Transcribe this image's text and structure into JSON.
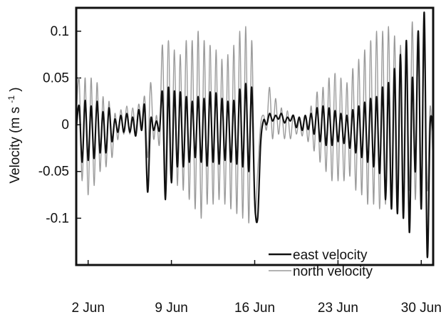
{
  "chart_data": {
    "type": "line",
    "title": "",
    "xlabel": "",
    "ylabel": "Velocity (m s",
    "ylabel_superscript": "-1",
    "ylabel_suffix": ")",
    "xlim": [
      "2000-06-01",
      "2000-07-01"
    ],
    "ylim": [
      -0.15,
      0.125
    ],
    "x_ticks": [
      {
        "date": "2000-06-02",
        "label": "2 Jun"
      },
      {
        "date": "2000-06-09",
        "label": "9 Jun"
      },
      {
        "date": "2000-06-16",
        "label": "16 Jun"
      },
      {
        "date": "2000-06-23",
        "label": "23 Jun"
      },
      {
        "date": "2000-06-30",
        "label": "30 Jun"
      }
    ],
    "y_ticks": [
      {
        "value": 0.1,
        "label": "0.1"
      },
      {
        "value": 0.05,
        "label": "0.05"
      },
      {
        "value": 0,
        "label": "0"
      },
      {
        "value": -0.05,
        "label": "-0.05"
      },
      {
        "value": -0.1,
        "label": "-0.1"
      }
    ],
    "grid": false,
    "legend_position": "bottom-right",
    "series": [
      {
        "name": "east velocity",
        "color": "#111111",
        "x": [
          "2000-06-01T00:00",
          "2000-06-01T06:00",
          "2000-06-01T12:00",
          "2000-06-01T18:00",
          "2000-06-02T00:00",
          "2000-06-02T06:00",
          "2000-06-02T12:00",
          "2000-06-02T18:00",
          "2000-06-03T00:00",
          "2000-06-03T06:00",
          "2000-06-03T12:00",
          "2000-06-03T18:00",
          "2000-06-04T00:00",
          "2000-06-04T06:00",
          "2000-06-04T12:00",
          "2000-06-04T18:00",
          "2000-06-05T00:00",
          "2000-06-05T06:00",
          "2000-06-05T12:00",
          "2000-06-05T18:00",
          "2000-06-06T00:00",
          "2000-06-06T06:00",
          "2000-06-06T12:00",
          "2000-06-06T18:00",
          "2000-06-07T00:00",
          "2000-06-07T06:00",
          "2000-06-07T12:00",
          "2000-06-07T18:00",
          "2000-06-08T00:00",
          "2000-06-08T06:00",
          "2000-06-08T12:00",
          "2000-06-08T18:00",
          "2000-06-09T00:00",
          "2000-06-09T06:00",
          "2000-06-09T12:00",
          "2000-06-09T18:00",
          "2000-06-10T00:00",
          "2000-06-10T06:00",
          "2000-06-10T12:00",
          "2000-06-10T18:00",
          "2000-06-11T00:00",
          "2000-06-11T06:00",
          "2000-06-11T12:00",
          "2000-06-11T18:00",
          "2000-06-12T00:00",
          "2000-06-12T06:00",
          "2000-06-12T12:00",
          "2000-06-12T18:00",
          "2000-06-13T00:00",
          "2000-06-13T06:00",
          "2000-06-13T12:00",
          "2000-06-13T18:00",
          "2000-06-14T00:00",
          "2000-06-14T06:00",
          "2000-06-14T12:00",
          "2000-06-14T18:00",
          "2000-06-15T00:00",
          "2000-06-15T06:00",
          "2000-06-15T12:00",
          "2000-06-15T18:00",
          "2000-06-16T00:00",
          "2000-06-16T06:00",
          "2000-06-16T12:00",
          "2000-06-16T18:00",
          "2000-06-17T00:00",
          "2000-06-17T06:00",
          "2000-06-17T12:00",
          "2000-06-17T18:00",
          "2000-06-18T00:00",
          "2000-06-18T06:00",
          "2000-06-18T12:00",
          "2000-06-18T18:00",
          "2000-06-19T00:00",
          "2000-06-19T06:00",
          "2000-06-19T12:00",
          "2000-06-19T18:00",
          "2000-06-20T00:00",
          "2000-06-20T06:00",
          "2000-06-20T12:00",
          "2000-06-20T18:00",
          "2000-06-21T00:00",
          "2000-06-21T06:00",
          "2000-06-21T12:00",
          "2000-06-21T18:00",
          "2000-06-22T00:00",
          "2000-06-22T06:00",
          "2000-06-22T12:00",
          "2000-06-22T18:00",
          "2000-06-23T00:00",
          "2000-06-23T06:00",
          "2000-06-23T12:00",
          "2000-06-23T18:00",
          "2000-06-24T00:00",
          "2000-06-24T06:00",
          "2000-06-24T12:00",
          "2000-06-24T18:00",
          "2000-06-25T00:00",
          "2000-06-25T06:00",
          "2000-06-25T12:00",
          "2000-06-25T18:00",
          "2000-06-26T00:00",
          "2000-06-26T06:00",
          "2000-06-26T12:00",
          "2000-06-26T18:00",
          "2000-06-27T00:00",
          "2000-06-27T06:00",
          "2000-06-27T12:00",
          "2000-06-27T18:00",
          "2000-06-28T00:00",
          "2000-06-28T06:00",
          "2000-06-28T12:00",
          "2000-06-28T18:00",
          "2000-06-29T00:00",
          "2000-06-29T06:00",
          "2000-06-29T12:00",
          "2000-06-29T18:00",
          "2000-06-30T00:00",
          "2000-06-30T06:00",
          "2000-06-30T12:00",
          "2000-06-30T18:00",
          "2000-07-01T00:00"
        ],
        "values": [
          -0.005,
          0.02,
          -0.04,
          0.026,
          -0.038,
          0.02,
          -0.036,
          0.025,
          -0.03,
          0.014,
          -0.03,
          0.018,
          -0.018,
          0.006,
          -0.008,
          0.01,
          -0.008,
          0.012,
          -0.008,
          0.008,
          -0.012,
          0.016,
          -0.006,
          0.02,
          -0.072,
          0.005,
          -0.006,
          0.004,
          -0.006,
          0.034,
          -0.08,
          0.04,
          -0.062,
          0.036,
          -0.045,
          0.035,
          -0.045,
          0.03,
          -0.04,
          0.025,
          -0.035,
          0.03,
          -0.04,
          0.028,
          -0.044,
          0.035,
          -0.04,
          0.034,
          -0.042,
          0.028,
          -0.038,
          0.025,
          -0.04,
          0.026,
          -0.042,
          0.038,
          -0.045,
          0.044,
          -0.05,
          0.04,
          -0.08,
          -0.1,
          -0.02,
          0.005,
          0.0,
          0.012,
          0.004,
          0.01,
          0.006,
          0.012,
          0.002,
          0.008,
          0.004,
          0.01,
          -0.003,
          0.008,
          -0.006,
          0.01,
          -0.005,
          0.012,
          -0.01,
          0.018,
          -0.018,
          0.02,
          -0.022,
          0.018,
          -0.022,
          0.015,
          -0.018,
          0.012,
          -0.02,
          0.01,
          -0.025,
          0.016,
          -0.03,
          0.02,
          -0.035,
          0.024,
          -0.04,
          0.028,
          -0.045,
          0.03,
          -0.052,
          0.04,
          -0.08,
          0.045,
          -0.09,
          0.06,
          -0.095,
          0.075,
          -0.1,
          0.09,
          -0.115,
          0.05,
          -0.05,
          0.1,
          -0.09,
          0.12,
          -0.14,
          0.002,
          -0.01
        ]
      },
      {
        "name": "north velocity",
        "color": "#9a9a9a",
        "x": [
          "2000-06-01T00:00",
          "2000-06-01T06:00",
          "2000-06-01T12:00",
          "2000-06-01T18:00",
          "2000-06-02T00:00",
          "2000-06-02T06:00",
          "2000-06-02T12:00",
          "2000-06-02T18:00",
          "2000-06-03T00:00",
          "2000-06-03T06:00",
          "2000-06-03T12:00",
          "2000-06-03T18:00",
          "2000-06-04T00:00",
          "2000-06-04T06:00",
          "2000-06-04T12:00",
          "2000-06-04T18:00",
          "2000-06-05T00:00",
          "2000-06-05T06:00",
          "2000-06-05T12:00",
          "2000-06-05T18:00",
          "2000-06-06T00:00",
          "2000-06-06T06:00",
          "2000-06-06T12:00",
          "2000-06-06T18:00",
          "2000-06-07T00:00",
          "2000-06-07T06:00",
          "2000-06-07T12:00",
          "2000-06-07T18:00",
          "2000-06-08T00:00",
          "2000-06-08T06:00",
          "2000-06-08T12:00",
          "2000-06-08T18:00",
          "2000-06-09T00:00",
          "2000-06-09T06:00",
          "2000-06-09T12:00",
          "2000-06-09T18:00",
          "2000-06-10T00:00",
          "2000-06-10T06:00",
          "2000-06-10T12:00",
          "2000-06-10T18:00",
          "2000-06-11T00:00",
          "2000-06-11T06:00",
          "2000-06-11T12:00",
          "2000-06-11T18:00",
          "2000-06-12T00:00",
          "2000-06-12T06:00",
          "2000-06-12T12:00",
          "2000-06-12T18:00",
          "2000-06-13T00:00",
          "2000-06-13T06:00",
          "2000-06-13T12:00",
          "2000-06-13T18:00",
          "2000-06-14T00:00",
          "2000-06-14T06:00",
          "2000-06-14T12:00",
          "2000-06-14T18:00",
          "2000-06-15T00:00",
          "2000-06-15T06:00",
          "2000-06-15T12:00",
          "2000-06-15T18:00",
          "2000-06-16T00:00",
          "2000-06-16T06:00",
          "2000-06-16T12:00",
          "2000-06-16T18:00",
          "2000-06-17T00:00",
          "2000-06-17T06:00",
          "2000-06-17T12:00",
          "2000-06-17T18:00",
          "2000-06-18T00:00",
          "2000-06-18T06:00",
          "2000-06-18T12:00",
          "2000-06-18T18:00",
          "2000-06-19T00:00",
          "2000-06-19T06:00",
          "2000-06-19T12:00",
          "2000-06-19T18:00",
          "2000-06-20T00:00",
          "2000-06-20T06:00",
          "2000-06-20T12:00",
          "2000-06-20T18:00",
          "2000-06-21T00:00",
          "2000-06-21T06:00",
          "2000-06-21T12:00",
          "2000-06-21T18:00",
          "2000-06-22T00:00",
          "2000-06-22T06:00",
          "2000-06-22T12:00",
          "2000-06-22T18:00",
          "2000-06-23T00:00",
          "2000-06-23T06:00",
          "2000-06-23T12:00",
          "2000-06-23T18:00",
          "2000-06-24T00:00",
          "2000-06-24T06:00",
          "2000-06-24T12:00",
          "2000-06-24T18:00",
          "2000-06-25T00:00",
          "2000-06-25T06:00",
          "2000-06-25T12:00",
          "2000-06-25T18:00",
          "2000-06-26T00:00",
          "2000-06-26T06:00",
          "2000-06-26T12:00",
          "2000-06-26T18:00",
          "2000-06-27T00:00",
          "2000-06-27T06:00",
          "2000-06-27T12:00",
          "2000-06-27T18:00",
          "2000-06-28T00:00",
          "2000-06-28T06:00",
          "2000-06-28T12:00",
          "2000-06-28T18:00",
          "2000-06-29T00:00",
          "2000-06-29T06:00",
          "2000-06-29T12:00",
          "2000-06-29T18:00",
          "2000-06-30T00:00",
          "2000-06-30T06:00",
          "2000-06-30T12:00",
          "2000-06-30T18:00",
          "2000-07-01T00:00"
        ],
        "values": [
          0.01,
          0.048,
          -0.06,
          0.05,
          -0.075,
          0.05,
          -0.065,
          0.045,
          -0.05,
          0.03,
          -0.045,
          0.025,
          -0.035,
          0.012,
          -0.016,
          0.016,
          -0.01,
          0.02,
          -0.01,
          0.018,
          -0.01,
          0.022,
          0.0,
          0.03,
          -0.035,
          0.045,
          -0.015,
          0.01,
          -0.02,
          0.085,
          -0.06,
          0.09,
          -0.06,
          0.08,
          -0.065,
          0.075,
          -0.07,
          0.09,
          -0.08,
          0.09,
          -0.09,
          0.1,
          -0.1,
          0.09,
          -0.085,
          0.085,
          -0.085,
          0.08,
          -0.08,
          0.07,
          -0.085,
          0.075,
          -0.09,
          0.085,
          -0.095,
          0.1,
          -0.1,
          0.105,
          -0.105,
          0.09,
          -0.09,
          -0.05,
          0.0,
          0.01,
          -0.005,
          0.04,
          -0.015,
          0.028,
          -0.01,
          0.018,
          -0.015,
          0.015,
          -0.015,
          0.01,
          -0.01,
          0.006,
          -0.012,
          0.01,
          -0.018,
          0.02,
          -0.028,
          0.035,
          -0.04,
          0.04,
          -0.05,
          0.05,
          -0.06,
          0.055,
          -0.06,
          0.05,
          -0.06,
          0.045,
          -0.055,
          0.06,
          -0.07,
          0.07,
          -0.075,
          0.08,
          -0.085,
          0.09,
          -0.085,
          0.1,
          -0.09,
          0.1,
          -0.085,
          0.105,
          -0.09,
          0.095,
          -0.08,
          0.085,
          -0.075,
          0.085,
          -0.07,
          0.11,
          -0.08,
          0.09,
          -0.06,
          0.08,
          -0.07,
          0.02,
          -0.045
        ]
      }
    ]
  }
}
